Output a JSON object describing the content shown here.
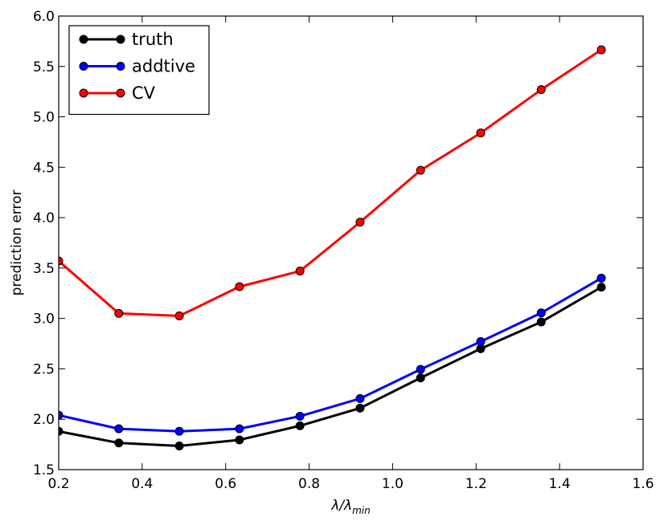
{
  "chart_data": {
    "type": "line",
    "title": "",
    "xlabel": "λ/λ",
    "xlabel_sub": "min",
    "ylabel": "prediction error",
    "xlim": [
      0.2,
      1.6
    ],
    "ylim": [
      1.5,
      6.0
    ],
    "xticks": [
      "0.2",
      "0.4",
      "0.6",
      "0.8",
      "1.0",
      "1.2",
      "1.4",
      "1.6"
    ],
    "yticks": [
      "1.5",
      "2.0",
      "2.5",
      "3.0",
      "3.5",
      "4.0",
      "4.5",
      "5.0",
      "5.5",
      "6.0"
    ],
    "grid": false,
    "legend_position": "top-left",
    "x": [
      0.2,
      0.344,
      0.489,
      0.633,
      0.778,
      0.922,
      1.067,
      1.211,
      1.356,
      1.5
    ],
    "series": [
      {
        "name": "truth",
        "color": "#000000",
        "values": [
          1.88,
          1.765,
          1.735,
          1.795,
          1.935,
          2.11,
          2.41,
          2.7,
          2.965,
          3.31
        ]
      },
      {
        "name": "addtive",
        "color": "#0000ff",
        "values": [
          2.04,
          1.905,
          1.88,
          1.905,
          2.03,
          2.205,
          2.495,
          2.77,
          3.055,
          3.4
        ]
      },
      {
        "name": "CV",
        "color": "#ff0000",
        "values": [
          3.57,
          3.05,
          3.025,
          3.315,
          3.47,
          3.955,
          4.47,
          4.84,
          5.27,
          5.665
        ]
      }
    ]
  }
}
